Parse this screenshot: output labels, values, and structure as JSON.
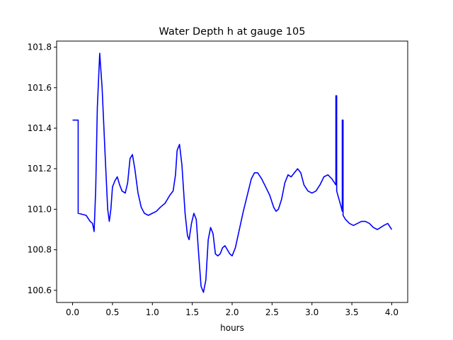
{
  "chart_data": {
    "type": "line",
    "title": "Water Depth h at gauge 105",
    "xlabel": "hours",
    "ylabel": "",
    "xlim": [
      -0.2,
      4.2
    ],
    "ylim": [
      100.54,
      101.83
    ],
    "grid": false,
    "x_ticks": [
      {
        "value": 0.0,
        "label": "0.0"
      },
      {
        "value": 0.5,
        "label": "0.5"
      },
      {
        "value": 1.0,
        "label": "1.0"
      },
      {
        "value": 1.5,
        "label": "1.5"
      },
      {
        "value": 2.0,
        "label": "2.0"
      },
      {
        "value": 2.5,
        "label": "2.5"
      },
      {
        "value": 3.0,
        "label": "3.0"
      },
      {
        "value": 3.5,
        "label": "3.5"
      },
      {
        "value": 4.0,
        "label": "4.0"
      }
    ],
    "y_ticks": [
      {
        "value": 100.6,
        "label": "100.6"
      },
      {
        "value": 100.8,
        "label": "100.8"
      },
      {
        "value": 101.0,
        "label": "101.0"
      },
      {
        "value": 101.2,
        "label": "101.2"
      },
      {
        "value": 101.4,
        "label": "101.4"
      },
      {
        "value": 101.6,
        "label": "101.6"
      },
      {
        "value": 101.8,
        "label": "101.8"
      }
    ],
    "series": [
      {
        "color": "#0000ff",
        "points": [
          [
            0.0,
            101.44
          ],
          [
            0.07,
            101.44
          ],
          [
            0.07,
            100.98
          ],
          [
            0.17,
            100.97
          ],
          [
            0.22,
            100.94
          ],
          [
            0.25,
            100.93
          ],
          [
            0.27,
            100.89
          ],
          [
            0.29,
            101.1
          ],
          [
            0.31,
            101.5
          ],
          [
            0.34,
            101.77
          ],
          [
            0.37,
            101.6
          ],
          [
            0.41,
            101.25
          ],
          [
            0.44,
            101.0
          ],
          [
            0.46,
            100.94
          ],
          [
            0.48,
            101.0
          ],
          [
            0.5,
            101.11
          ],
          [
            0.53,
            101.14
          ],
          [
            0.56,
            101.16
          ],
          [
            0.59,
            101.12
          ],
          [
            0.62,
            101.09
          ],
          [
            0.66,
            101.08
          ],
          [
            0.69,
            101.13
          ],
          [
            0.72,
            101.25
          ],
          [
            0.75,
            101.27
          ],
          [
            0.78,
            101.2
          ],
          [
            0.82,
            101.08
          ],
          [
            0.86,
            101.01
          ],
          [
            0.9,
            100.98
          ],
          [
            0.95,
            100.97
          ],
          [
            1.0,
            100.98
          ],
          [
            1.05,
            100.99
          ],
          [
            1.1,
            101.01
          ],
          [
            1.16,
            101.03
          ],
          [
            1.22,
            101.07
          ],
          [
            1.26,
            101.09
          ],
          [
            1.29,
            101.17
          ],
          [
            1.31,
            101.29
          ],
          [
            1.34,
            101.32
          ],
          [
            1.37,
            101.22
          ],
          [
            1.41,
            100.98
          ],
          [
            1.44,
            100.87
          ],
          [
            1.46,
            100.85
          ],
          [
            1.49,
            100.93
          ],
          [
            1.52,
            100.98
          ],
          [
            1.55,
            100.95
          ],
          [
            1.58,
            100.78
          ],
          [
            1.61,
            100.62
          ],
          [
            1.64,
            100.59
          ],
          [
            1.67,
            100.65
          ],
          [
            1.7,
            100.85
          ],
          [
            1.73,
            100.91
          ],
          [
            1.76,
            100.88
          ],
          [
            1.79,
            100.78
          ],
          [
            1.82,
            100.77
          ],
          [
            1.85,
            100.78
          ],
          [
            1.88,
            100.81
          ],
          [
            1.91,
            100.82
          ],
          [
            1.94,
            100.8
          ],
          [
            1.97,
            100.78
          ],
          [
            2.0,
            100.77
          ],
          [
            2.04,
            100.81
          ],
          [
            2.09,
            100.9
          ],
          [
            2.14,
            100.99
          ],
          [
            2.19,
            101.07
          ],
          [
            2.24,
            101.15
          ],
          [
            2.28,
            101.18
          ],
          [
            2.32,
            101.18
          ],
          [
            2.37,
            101.15
          ],
          [
            2.42,
            101.11
          ],
          [
            2.47,
            101.07
          ],
          [
            2.52,
            101.01
          ],
          [
            2.55,
            100.99
          ],
          [
            2.58,
            101.0
          ],
          [
            2.62,
            101.05
          ],
          [
            2.66,
            101.13
          ],
          [
            2.7,
            101.17
          ],
          [
            2.74,
            101.16
          ],
          [
            2.78,
            101.18
          ],
          [
            2.82,
            101.2
          ],
          [
            2.86,
            101.18
          ],
          [
            2.9,
            101.12
          ],
          [
            2.95,
            101.09
          ],
          [
            3.0,
            101.08
          ],
          [
            3.05,
            101.09
          ],
          [
            3.1,
            101.12
          ],
          [
            3.15,
            101.16
          ],
          [
            3.2,
            101.17
          ],
          [
            3.25,
            101.15
          ],
          [
            3.3,
            101.12
          ],
          [
            3.3,
            101.56
          ],
          [
            3.31,
            101.56
          ],
          [
            3.31,
            101.09
          ],
          [
            3.36,
            101.02
          ],
          [
            3.38,
            100.99
          ],
          [
            3.38,
            101.44
          ],
          [
            3.39,
            101.44
          ],
          [
            3.39,
            100.97
          ],
          [
            3.42,
            100.95
          ],
          [
            3.47,
            100.93
          ],
          [
            3.52,
            100.92
          ],
          [
            3.57,
            100.93
          ],
          [
            3.62,
            100.94
          ],
          [
            3.67,
            100.94
          ],
          [
            3.72,
            100.93
          ],
          [
            3.77,
            100.91
          ],
          [
            3.82,
            100.9
          ],
          [
            3.86,
            100.91
          ],
          [
            3.9,
            100.92
          ],
          [
            3.95,
            100.93
          ],
          [
            4.0,
            100.9
          ]
        ]
      }
    ]
  }
}
